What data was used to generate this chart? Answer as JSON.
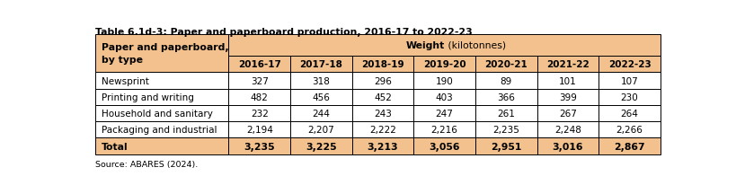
{
  "title": "Table 6.1d-3: Paper and paperboard production, 2016-17 to 2022-23",
  "source": "Source: ABARES (2024).",
  "years": [
    "2016-17",
    "2017-18",
    "2018-19",
    "2019-20",
    "2020-21",
    "2021-22",
    "2022-23"
  ],
  "rows": [
    {
      "label": "Newsprint",
      "values": [
        "327",
        "318",
        "296",
        "190",
        "89",
        "101",
        "107"
      ]
    },
    {
      "label": "Printing and writing",
      "values": [
        "482",
        "456",
        "452",
        "403",
        "366",
        "399",
        "230"
      ]
    },
    {
      "label": "Household and sanitary",
      "values": [
        "232",
        "244",
        "243",
        "247",
        "261",
        "267",
        "264"
      ]
    },
    {
      "label": "Packaging and industrial",
      "values": [
        "2,194",
        "2,207",
        "2,222",
        "2,216",
        "2,235",
        "2,248",
        "2,266"
      ]
    }
  ],
  "total_label": "Total",
  "total_values": [
    "3,235",
    "3,225",
    "3,213",
    "3,056",
    "2,951",
    "3,016",
    "2,867"
  ],
  "header_bg": "#F2C18D",
  "total_bg": "#F2C18D",
  "row_bg": "#FFFFFF",
  "border_color": "#000000",
  "title_color": "#000000",
  "outer_bg": "#FFFFFF"
}
